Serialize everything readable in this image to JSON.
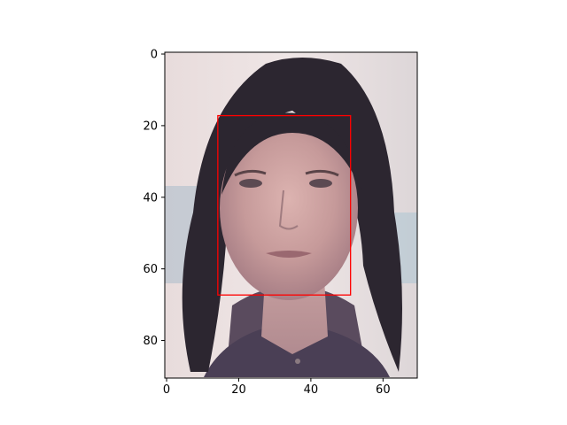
{
  "chart_data": {
    "type": "image",
    "image_extent": {
      "x": [
        -0.5,
        69.5
      ],
      "y": [
        90.5,
        -0.5
      ]
    },
    "x_ticks": [
      {
        "value": 0,
        "label": "0"
      },
      {
        "value": 20,
        "label": "20"
      },
      {
        "value": 40,
        "label": "40"
      },
      {
        "value": 60,
        "label": "60"
      }
    ],
    "y_ticks": [
      {
        "value": 0,
        "label": "0"
      },
      {
        "value": 20,
        "label": "20"
      },
      {
        "value": 40,
        "label": "40"
      },
      {
        "value": 60,
        "label": "60"
      },
      {
        "value": 80,
        "label": "80"
      }
    ],
    "bounding_box": {
      "x_min": 14.2,
      "y_min": 17.2,
      "x_max": 51.0,
      "y_max": 67.3
    },
    "box_color": "#ff0000",
    "title": "",
    "xlabel": "",
    "ylabel": ""
  }
}
